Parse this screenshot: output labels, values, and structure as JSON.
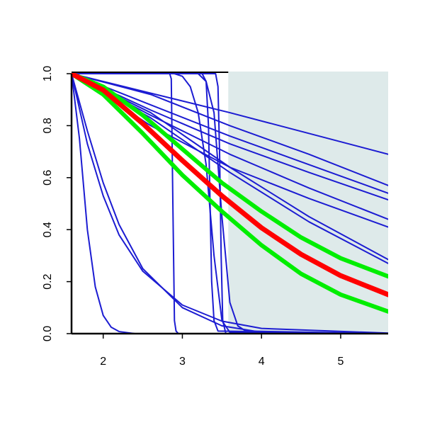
{
  "chart_data": {
    "type": "line",
    "xlim": [
      1.6,
      5.6
    ],
    "ylim": [
      0,
      1
    ],
    "xticks": [
      2,
      3,
      4,
      5
    ],
    "yticks": [
      {
        "value": 0,
        "label": "0.0"
      },
      {
        "value": 0.2,
        "label": "0.2"
      },
      {
        "value": 0.4,
        "label": "0.4"
      },
      {
        "value": 0.6,
        "label": "0.6"
      },
      {
        "value": 0.8,
        "label": "0.8"
      },
      {
        "value": 1,
        "label": "1.0"
      }
    ],
    "shaded_region": {
      "xlim": [
        3.58,
        5.6
      ],
      "color": "#deeaea"
    },
    "series": [
      {
        "color": "#1c1cd2",
        "line_width": 2,
        "x": [
          1.6,
          3.6,
          5.6
        ],
        "values": [
          1,
          0.85,
          0.69
        ]
      },
      {
        "color": "#1c1cd2",
        "line_width": 2,
        "x": [
          1.6,
          2.6,
          3.6,
          4.6,
          5.6
        ],
        "values": [
          1,
          0.92,
          0.8,
          0.69,
          0.57
        ]
      },
      {
        "color": "#1c1cd2",
        "line_width": 2,
        "x": [
          1.6,
          2.6,
          3.6,
          4.6,
          5.6
        ],
        "values": [
          1,
          0.88,
          0.76,
          0.65,
          0.54
        ]
      },
      {
        "color": "#1c1cd2",
        "line_width": 2,
        "x": [
          1.6,
          2.6,
          3.6,
          4.6,
          5.6
        ],
        "values": [
          1,
          0.86,
          0.73,
          0.62,
          0.515
        ]
      },
      {
        "color": "#1c1cd2",
        "line_width": 2,
        "x": [
          1.6,
          2.6,
          3.6,
          4.6,
          5.6
        ],
        "values": [
          1,
          0.84,
          0.69,
          0.56,
          0.44
        ]
      },
      {
        "color": "#1c1cd2",
        "line_width": 2,
        "x": [
          1.6,
          2.6,
          3.6,
          4.6,
          5.6
        ],
        "values": [
          1,
          0.8,
          0.64,
          0.52,
          0.41
        ]
      },
      {
        "color": "#1c1cd2",
        "line_width": 2,
        "x": [
          1.6,
          2.6,
          3.6,
          4.6,
          5.6
        ],
        "values": [
          1,
          0.85,
          0.64,
          0.45,
          0.285
        ]
      },
      {
        "color": "#1c1cd2",
        "line_width": 2,
        "x": [
          1.6,
          2.6,
          3.6,
          4.6,
          5.6
        ],
        "values": [
          1,
          0.83,
          0.62,
          0.43,
          0.27
        ]
      },
      {
        "color": "#1c1cd2",
        "line_width": 2,
        "x": [
          1.6,
          1.7,
          1.8,
          1.9,
          2.0,
          2.1,
          2.2,
          2.4,
          5.6
        ],
        "values": [
          1,
          0.75,
          0.4,
          0.18,
          0.07,
          0.025,
          0.008,
          0,
          0
        ]
      },
      {
        "color": "#1c1cd2",
        "line_width": 2,
        "x": [
          1.6,
          1.8,
          2.0,
          2.2,
          2.5,
          3.0,
          3.5,
          4.0,
          5.6
        ],
        "values": [
          1,
          0.73,
          0.53,
          0.38,
          0.24,
          0.11,
          0.048,
          0.02,
          0.002
        ]
      },
      {
        "color": "#1c1cd2",
        "line_width": 2,
        "x": [
          1.6,
          1.8,
          2.0,
          2.2,
          2.5,
          3.0,
          3.5,
          4.0,
          5.6
        ],
        "values": [
          1,
          0.78,
          0.58,
          0.42,
          0.25,
          0.1,
          0.03,
          0.005,
          0
        ]
      },
      {
        "color": "#1c1cd2",
        "line_width": 2,
        "x": [
          1.6,
          2.84,
          2.86,
          2.88,
          2.9,
          2.92,
          2.95,
          5.6
        ],
        "values": [
          1,
          1,
          0.98,
          0.5,
          0.05,
          0.01,
          0,
          0
        ]
      },
      {
        "color": "#1c1cd2",
        "line_width": 2,
        "x": [
          1.6,
          2.9,
          3.0,
          3.1,
          3.2,
          3.3,
          3.4,
          3.5,
          3.6,
          5.6
        ],
        "values": [
          1,
          1,
          0.99,
          0.95,
          0.85,
          0.65,
          0.3,
          0.05,
          0.005,
          0
        ]
      },
      {
        "color": "#1c1cd2",
        "line_width": 2,
        "x": [
          1.6,
          3.25,
          3.3,
          3.33,
          3.35,
          3.37,
          3.4,
          3.45,
          5.6
        ],
        "values": [
          1,
          1,
          0.97,
          0.8,
          0.5,
          0.2,
          0.05,
          0.01,
          0
        ]
      },
      {
        "color": "#1c1cd2",
        "line_width": 2,
        "x": [
          1.6,
          3.42,
          3.45,
          3.47,
          3.49,
          3.51,
          3.55,
          5.6
        ],
        "values": [
          1,
          1,
          0.95,
          0.7,
          0.3,
          0.05,
          0,
          0
        ]
      },
      {
        "color": "#1c1cd2",
        "line_width": 2,
        "x": [
          1.6,
          3.2,
          3.3,
          3.4,
          3.5,
          3.6,
          3.7,
          3.8,
          5.6
        ],
        "values": [
          1,
          1,
          0.97,
          0.85,
          0.45,
          0.12,
          0.03,
          0.01,
          0
        ]
      },
      {
        "color": "#00ee00",
        "line_width": 6,
        "x": [
          1.6,
          2.0,
          2.5,
          3.0,
          3.5,
          4.0,
          4.5,
          5.0,
          5.6
        ],
        "values": [
          1,
          0.95,
          0.84,
          0.71,
          0.58,
          0.47,
          0.37,
          0.29,
          0.22
        ]
      },
      {
        "color": "#00ee00",
        "line_width": 6,
        "x": [
          1.6,
          2.0,
          2.5,
          3.0,
          3.5,
          4.0,
          4.5,
          5.0,
          5.6
        ],
        "values": [
          1,
          0.92,
          0.77,
          0.61,
          0.47,
          0.34,
          0.23,
          0.15,
          0.085
        ]
      },
      {
        "color": "#ff0000",
        "line_width": 7,
        "x": [
          1.6,
          2.0,
          2.5,
          3.0,
          3.5,
          4.0,
          4.5,
          5.0,
          5.6
        ],
        "values": [
          1,
          0.937,
          0.808,
          0.666,
          0.53,
          0.407,
          0.305,
          0.223,
          0.15
        ]
      }
    ]
  }
}
